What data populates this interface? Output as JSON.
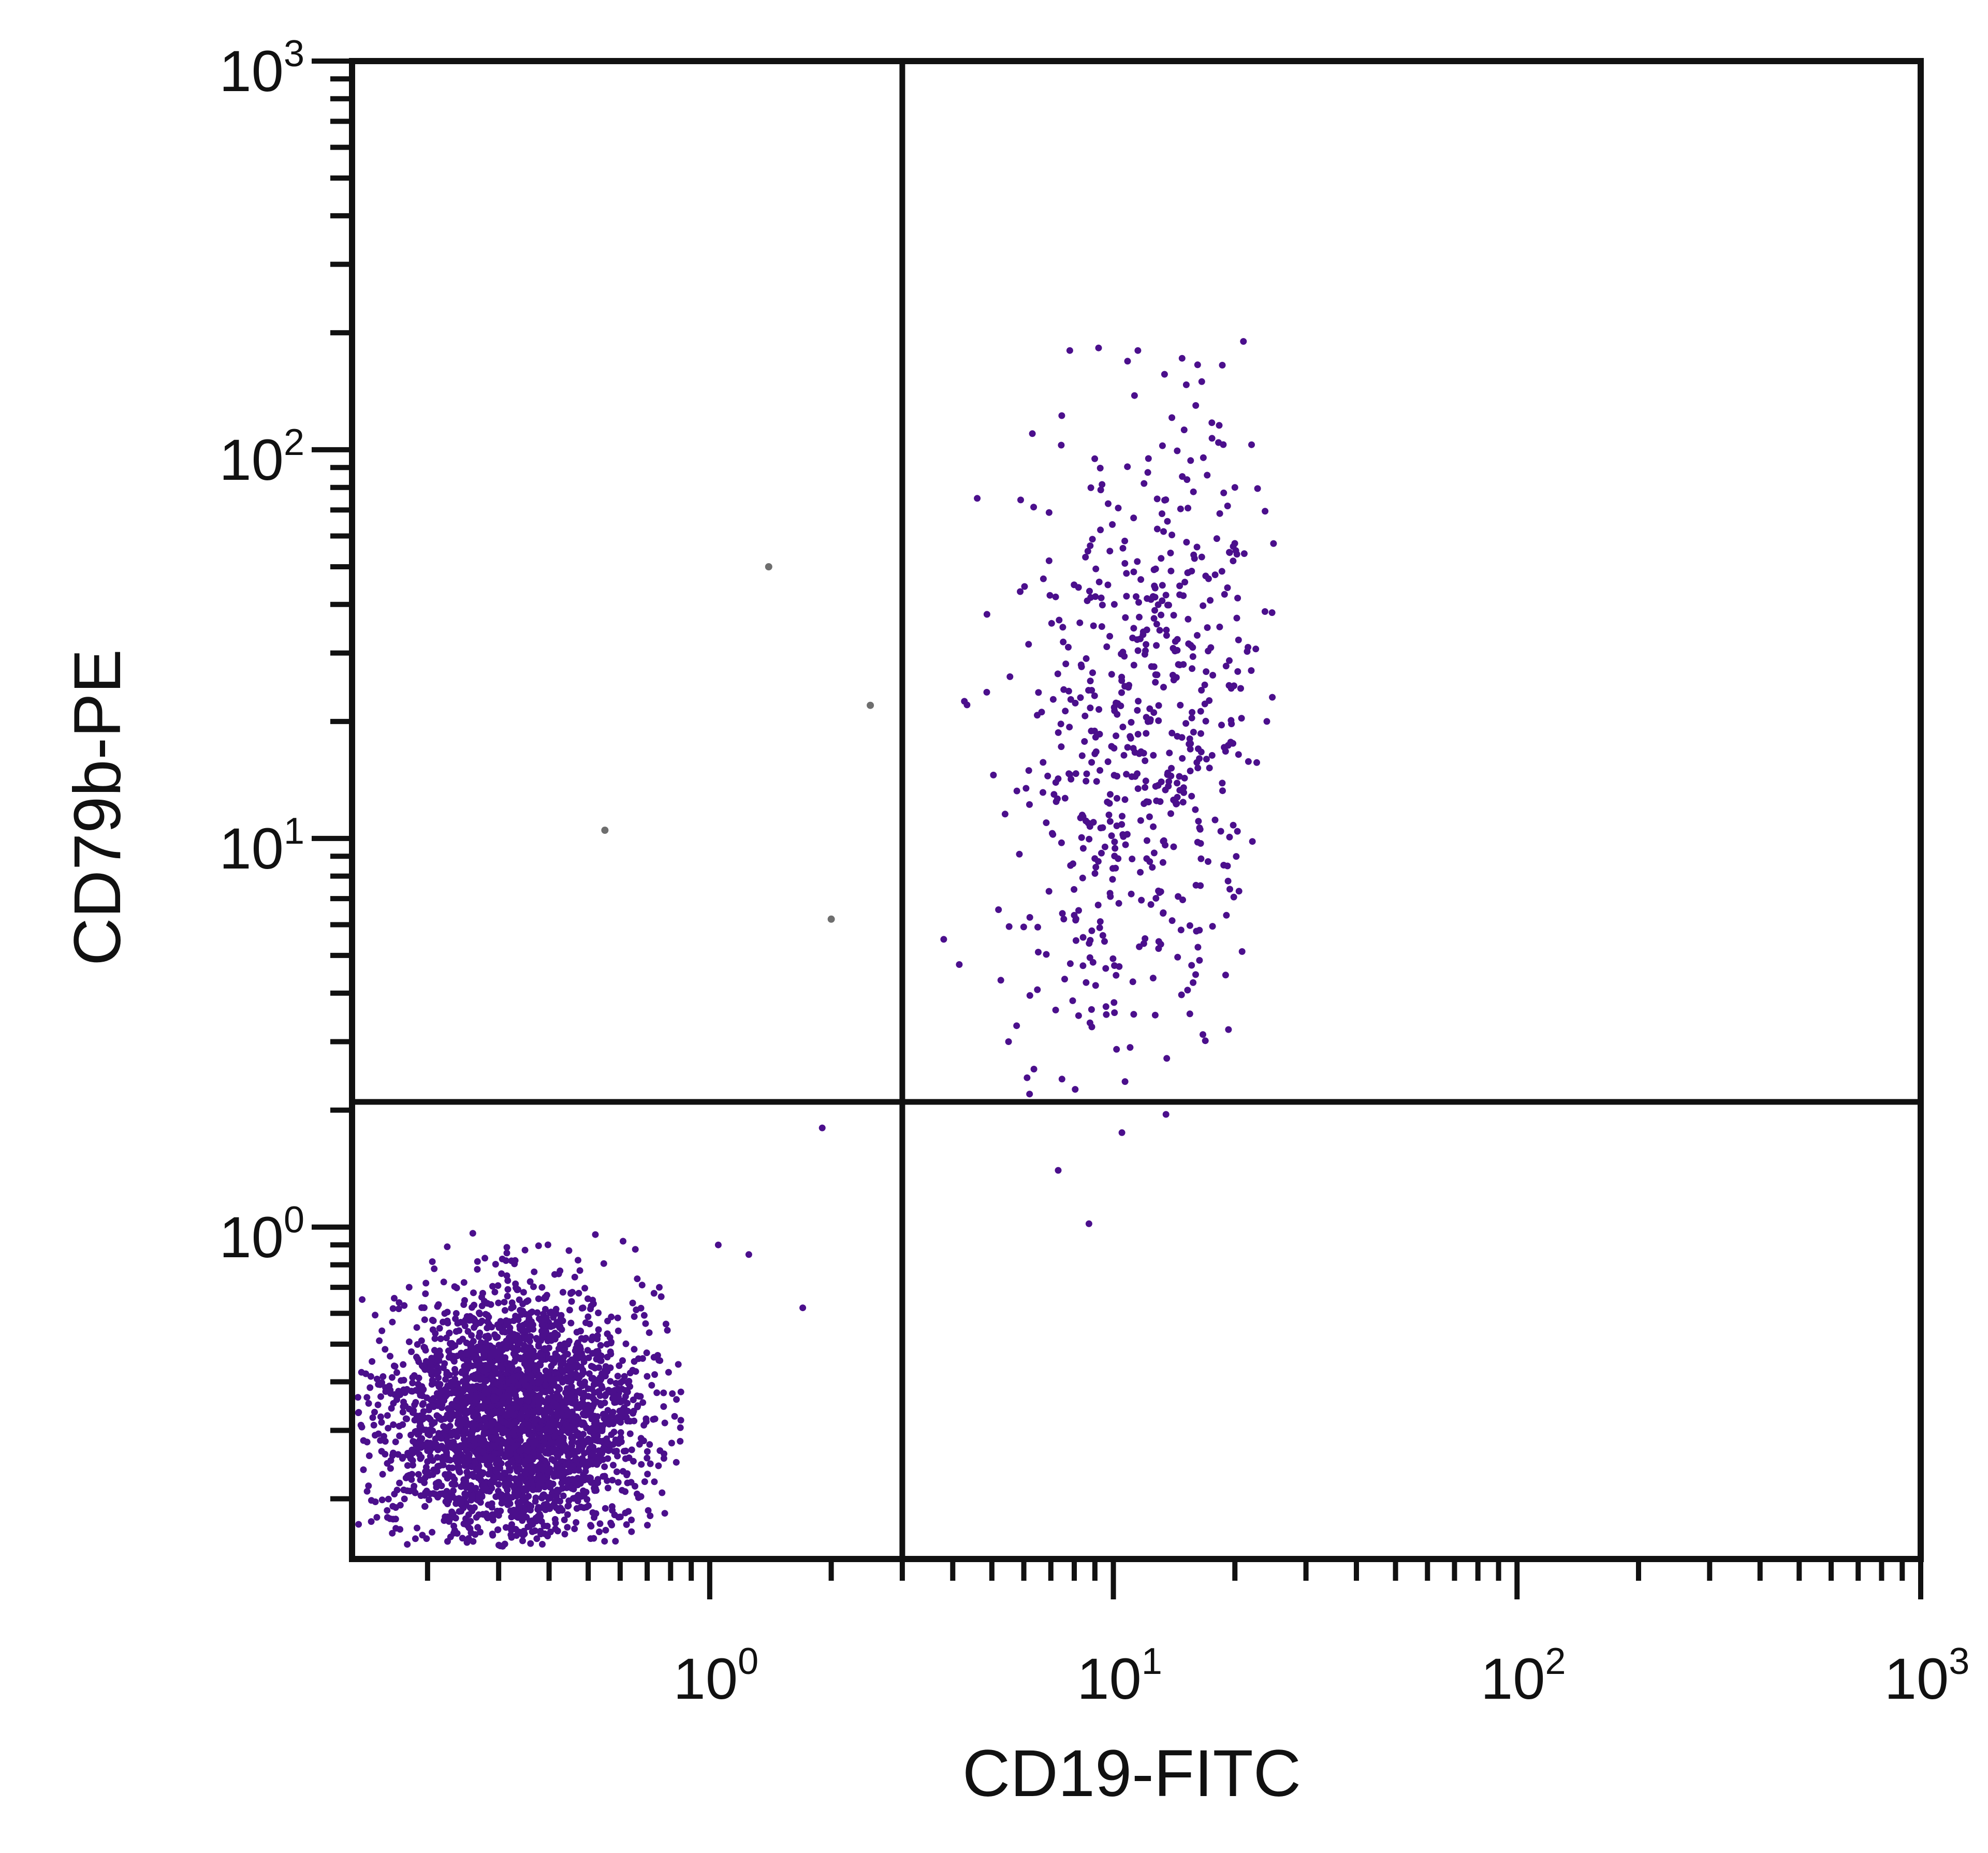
{
  "chart_data": {
    "type": "scatter",
    "title": "",
    "xlabel": "CD19-FITC",
    "ylabel": "CD79b-PE",
    "x_scale": "log",
    "y_scale": "log",
    "xlim": [
      0.13,
      1000
    ],
    "ylim": [
      0.14,
      1000
    ],
    "x_ticks": [
      {
        "value": 1,
        "base": "10",
        "exp": "0"
      },
      {
        "value": 10,
        "base": "10",
        "exp": "1"
      },
      {
        "value": 100,
        "base": "10",
        "exp": "2"
      },
      {
        "value": 1000,
        "base": "10",
        "exp": "3"
      }
    ],
    "y_ticks": [
      {
        "value": 1,
        "base": "10",
        "exp": "0"
      },
      {
        "value": 10,
        "base": "10",
        "exp": "1"
      },
      {
        "value": 100,
        "base": "10",
        "exp": "2"
      },
      {
        "value": 1000,
        "base": "10",
        "exp": "3"
      }
    ],
    "quadrant_gates": {
      "x": 3.0,
      "y": 2.1
    },
    "grid": false,
    "legend": "none",
    "point_color": "#4b0f8c",
    "outlier_color": "#6e6e6e",
    "populations": [
      {
        "region": "lower-left",
        "center": [
          0.33,
          0.32
        ],
        "x_range": [
          0.13,
          0.85
        ],
        "y_range": [
          0.15,
          1.0
        ],
        "count": 3000
      },
      {
        "region": "upper-right",
        "center": [
          12,
          20
        ],
        "x_range": [
          3.8,
          25
        ],
        "y_range": [
          2.2,
          190
        ],
        "count": 600
      }
    ],
    "sample_points": [
      [
        0.61,
        0.92
      ],
      [
        1.05,
        0.9
      ],
      [
        1.25,
        0.85
      ],
      [
        1.9,
        1.8
      ],
      [
        1.7,
        0.62
      ],
      [
        0.75,
        0.7
      ],
      [
        7.3,
        1.4
      ],
      [
        8.7,
        1.02
      ],
      [
        10.5,
        1.75
      ],
      [
        6.2,
        2.2
      ],
      [
        13.5,
        1.95
      ],
      [
        4.6,
        75
      ],
      [
        6.3,
        110
      ],
      [
        7.8,
        180
      ],
      [
        11.5,
        180
      ],
      [
        21,
        190
      ],
      [
        16,
        130
      ],
      [
        5.5,
        3.0
      ],
      [
        8.2,
        3.5
      ],
      [
        11,
        2.9
      ],
      [
        3.8,
        5.5
      ],
      [
        20,
        80
      ],
      [
        24,
        20
      ]
    ],
    "outliers": [
      [
        1.4,
        50
      ],
      [
        2.5,
        22
      ],
      [
        0.55,
        10.5
      ],
      [
        2.0,
        6.2
      ]
    ]
  }
}
